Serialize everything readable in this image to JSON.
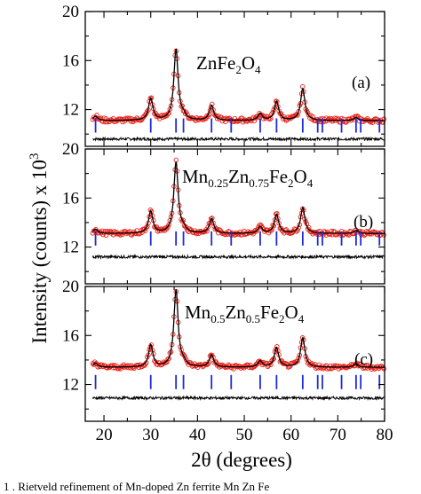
{
  "chart_data": {
    "type": "line",
    "xlabel": "2θ (degrees)",
    "ylabel": "Intensity (counts) x 10",
    "ylabel_sup": "3",
    "xlim": [
      16,
      80
    ],
    "ylim": [
      9,
      20
    ],
    "x_ticks": [
      "20",
      "30",
      "40",
      "50",
      "60",
      "70",
      "80"
    ],
    "y_ticks": [
      "12",
      "16",
      "20"
    ],
    "bragg_positions": [
      18.2,
      30.0,
      35.4,
      37.0,
      43.0,
      47.2,
      53.4,
      56.9,
      62.5,
      65.7,
      66.7,
      70.8,
      73.9,
      74.9,
      78.9
    ],
    "series_styles": {
      "observed": {
        "color": "#e8231b",
        "marker": "open-circle"
      },
      "calculated": {
        "color": "#000000",
        "marker": "line"
      },
      "difference": {
        "color": "#000000",
        "marker": "line"
      },
      "bragg": {
        "color": "#1f2bd6",
        "marker": "vertical-tick"
      }
    },
    "panels": [
      {
        "label": "(a)",
        "compound": {
          "parts": [
            "Zn",
            "Fe",
            "2",
            "O",
            "4"
          ],
          "subs": [
            false,
            false,
            true,
            false,
            true
          ]
        },
        "background": 11.1,
        "peaks": [
          [
            18.2,
            0.35
          ],
          [
            30.0,
            1.8
          ],
          [
            35.4,
            5.8
          ],
          [
            37.0,
            0.3
          ],
          [
            43.0,
            1.2
          ],
          [
            53.4,
            0.55
          ],
          [
            56.9,
            1.55
          ],
          [
            62.5,
            2.6
          ],
          [
            73.9,
            0.25
          ]
        ],
        "bragg_y": 10.7,
        "difference_y": 9.6
      },
      {
        "label": "(b)",
        "compound": {
          "parts": [
            "Mn",
            "0.25",
            "Zn",
            "0.75",
            "Fe",
            "2",
            "O",
            "4"
          ],
          "subs": [
            false,
            true,
            false,
            true,
            false,
            true,
            false,
            true
          ]
        },
        "background": 13.1,
        "peaks": [
          [
            18.2,
            0.35
          ],
          [
            30.0,
            1.8
          ],
          [
            35.4,
            5.8
          ],
          [
            37.0,
            0.3
          ],
          [
            43.0,
            1.2
          ],
          [
            53.4,
            0.55
          ],
          [
            56.9,
            1.55
          ],
          [
            62.5,
            2.1
          ],
          [
            73.9,
            0.25
          ]
        ],
        "bragg_y": 12.7,
        "difference_y": 11.2
      },
      {
        "label": "(c)",
        "compound": {
          "parts": [
            "Mn",
            "0.5",
            "Zn",
            "0.5",
            "Fe",
            "2",
            "O",
            "4"
          ],
          "subs": [
            false,
            true,
            false,
            true,
            false,
            true,
            false,
            true
          ]
        },
        "background": 13.4,
        "peaks": [
          [
            18.2,
            0.35
          ],
          [
            30.0,
            1.8
          ],
          [
            35.4,
            6.3
          ],
          [
            37.0,
            0.3
          ],
          [
            43.0,
            1.0
          ],
          [
            53.4,
            0.5
          ],
          [
            56.9,
            1.6
          ],
          [
            62.5,
            2.4
          ],
          [
            73.9,
            0.3
          ]
        ],
        "bragg_y": 12.2,
        "difference_y": 10.9
      }
    ]
  },
  "caption": "1 . Rietveld refinement of Mn-doped Zn ferrite Mn Zn Fe"
}
